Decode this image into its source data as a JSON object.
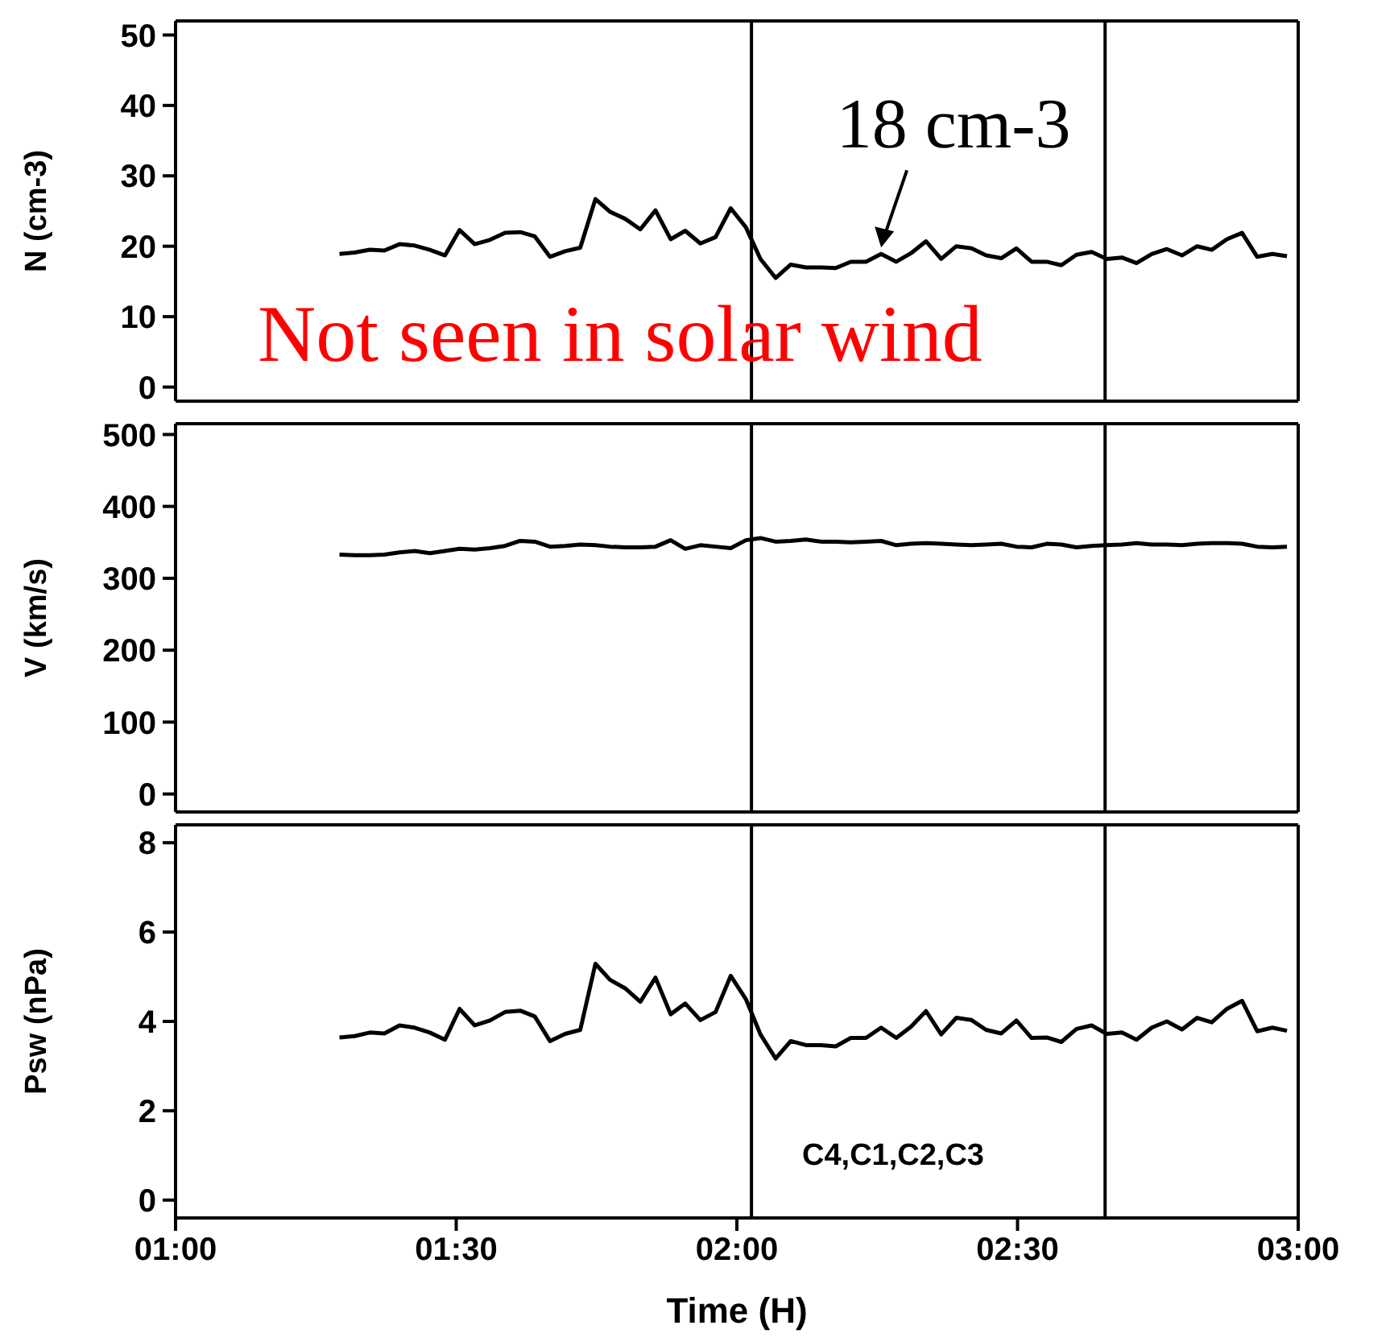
{
  "chart_data": [
    {
      "type": "line",
      "ylabel": "N (cm-3)",
      "xlim": [
        1,
        3
      ],
      "xticks": [
        {
          "value": 1,
          "label": null
        },
        {
          "value": 1.5,
          "label": null
        },
        {
          "value": 2,
          "label": null
        },
        {
          "value": 2.5,
          "label": null
        },
        {
          "value": 3,
          "label": null
        }
      ],
      "ylim": [
        -2,
        52
      ],
      "yticks": [
        0,
        10,
        20,
        30,
        40,
        50
      ],
      "tick_labels": "y",
      "x": [
        1.292,
        1.319,
        1.346,
        1.372,
        1.399,
        1.426,
        1.453,
        1.48,
        1.506,
        1.533,
        1.56,
        1.587,
        1.614,
        1.64,
        1.667,
        1.694,
        1.721,
        1.748,
        1.774,
        1.801,
        1.828,
        1.855,
        1.882,
        1.908,
        1.935,
        1.962,
        1.989,
        2.016,
        2.042,
        2.069,
        2.096,
        2.123,
        2.15,
        2.176,
        2.203,
        2.23,
        2.257,
        2.284,
        2.31,
        2.337,
        2.364,
        2.391,
        2.418,
        2.444,
        2.471,
        2.498,
        2.525,
        2.552,
        2.578,
        2.605,
        2.632,
        2.659,
        2.686,
        2.712,
        2.739,
        2.766,
        2.793,
        2.82,
        2.846,
        2.873,
        2.9,
        2.927,
        2.954,
        2.98
      ],
      "series": [
        {
          "color": "#000000",
          "values": [
            18.9,
            19.1,
            19.5,
            19.4,
            20.3,
            20.1,
            19.5,
            18.7,
            22.3,
            20.3,
            20.9,
            21.9,
            22.0,
            21.4,
            18.5,
            19.3,
            19.8,
            26.7,
            24.9,
            23.9,
            22.4,
            25.1,
            21.0,
            22.2,
            20.4,
            21.3,
            25.4,
            22.7,
            18.2,
            15.5,
            17.4,
            17.0,
            17.0,
            16.9,
            17.8,
            17.8,
            18.9,
            17.8,
            19.0,
            20.7,
            18.2,
            20.0,
            19.7,
            18.7,
            18.3,
            19.7,
            17.8,
            17.8,
            17.3,
            18.8,
            19.2,
            18.2,
            18.4,
            17.6,
            18.9,
            19.6,
            18.7,
            20.0,
            19.5,
            21.0,
            21.9,
            18.5,
            18.9,
            18.6
          ]
        }
      ],
      "ref_lines": [
        {
          "axis": "x",
          "value": 2.026,
          "color": "#000000"
        },
        {
          "axis": "x",
          "value": 2.656,
          "color": "#000000"
        }
      ],
      "annotations": [
        {
          "text": "18 cm-3",
          "x": 2.257,
          "y": 18.9
        },
        "Not seen in solar wind"
      ]
    },
    {
      "type": "line",
      "ylabel": "V (km/s)",
      "xlim": [
        1,
        3
      ],
      "xticks": [
        {
          "value": 1,
          "label": null
        },
        {
          "value": 1.5,
          "label": null
        },
        {
          "value": 2,
          "label": null
        },
        {
          "value": 2.5,
          "label": null
        },
        {
          "value": 3,
          "label": null
        }
      ],
      "ylim": [
        -25,
        515
      ],
      "yticks": [
        0,
        100,
        200,
        300,
        400,
        500
      ],
      "tick_labels": "y",
      "x": [
        1.292,
        1.319,
        1.346,
        1.372,
        1.399,
        1.426,
        1.453,
        1.48,
        1.506,
        1.533,
        1.56,
        1.587,
        1.614,
        1.64,
        1.667,
        1.694,
        1.721,
        1.748,
        1.774,
        1.801,
        1.828,
        1.855,
        1.882,
        1.908,
        1.935,
        1.962,
        1.989,
        2.016,
        2.042,
        2.069,
        2.096,
        2.123,
        2.15,
        2.176,
        2.203,
        2.23,
        2.257,
        2.284,
        2.31,
        2.337,
        2.364,
        2.391,
        2.418,
        2.444,
        2.471,
        2.498,
        2.525,
        2.552,
        2.578,
        2.605,
        2.632,
        2.659,
        2.686,
        2.712,
        2.739,
        2.766,
        2.793,
        2.82,
        2.846,
        2.873,
        2.9,
        2.927,
        2.954,
        2.98
      ],
      "series": [
        {
          "color": "#000000",
          "values": [
            333,
            332,
            332,
            333,
            336,
            338,
            335,
            338,
            341,
            340,
            342,
            345,
            352,
            351,
            344,
            345,
            347,
            346,
            344,
            343,
            343,
            344,
            353,
            341,
            346,
            344,
            342,
            353,
            356,
            351,
            352,
            354,
            351,
            351,
            350,
            351,
            352,
            346,
            348,
            349,
            348,
            347,
            346,
            347,
            348,
            344,
            343,
            348,
            347,
            343,
            345,
            346,
            347,
            349,
            347,
            347,
            346,
            348,
            349,
            349,
            348,
            344,
            343,
            344
          ]
        }
      ],
      "ref_lines": [
        {
          "axis": "x",
          "value": 2.026,
          "color": "#000000"
        },
        {
          "axis": "x",
          "value": 2.656,
          "color": "#000000"
        }
      ]
    },
    {
      "type": "line",
      "xlabel": "Time (H)",
      "ylabel": "Psw (nPa)",
      "xlim": [
        1,
        3
      ],
      "xticks": [
        {
          "value": 1,
          "label": "01:00"
        },
        {
          "value": 1.5,
          "label": "01:30"
        },
        {
          "value": 2,
          "label": "02:00"
        },
        {
          "value": 2.5,
          "label": "02:30"
        },
        {
          "value": 3,
          "label": "03:00"
        }
      ],
      "ylim": [
        -0.4,
        8.4
      ],
      "yticks": [
        0,
        2,
        4,
        6,
        8
      ],
      "x": [
        1.292,
        1.319,
        1.346,
        1.372,
        1.399,
        1.426,
        1.453,
        1.48,
        1.506,
        1.533,
        1.56,
        1.587,
        1.614,
        1.64,
        1.667,
        1.694,
        1.721,
        1.748,
        1.774,
        1.801,
        1.828,
        1.855,
        1.882,
        1.908,
        1.935,
        1.962,
        1.989,
        2.016,
        2.042,
        2.069,
        2.096,
        2.123,
        2.15,
        2.176,
        2.203,
        2.23,
        2.257,
        2.284,
        2.31,
        2.337,
        2.364,
        2.391,
        2.418,
        2.444,
        2.471,
        2.498,
        2.525,
        2.552,
        2.578,
        2.605,
        2.632,
        2.659,
        2.686,
        2.712,
        2.739,
        2.766,
        2.793,
        2.82,
        2.846,
        2.873,
        2.9,
        2.927,
        2.954,
        2.98
      ],
      "series": [
        {
          "color": "#000000",
          "values": [
            3.64,
            3.67,
            3.75,
            3.73,
            3.91,
            3.86,
            3.75,
            3.59,
            4.28,
            3.91,
            4.02,
            4.21,
            4.24,
            4.11,
            3.56,
            3.72,
            3.81,
            5.29,
            4.93,
            4.74,
            4.44,
            4.98,
            4.16,
            4.4,
            4.03,
            4.21,
            5.02,
            4.5,
            3.71,
            3.17,
            3.56,
            3.47,
            3.47,
            3.44,
            3.63,
            3.63,
            3.86,
            3.63,
            3.88,
            4.23,
            3.71,
            4.08,
            4.03,
            3.81,
            3.73,
            4.02,
            3.63,
            3.64,
            3.54,
            3.83,
            3.91,
            3.72,
            3.75,
            3.59,
            3.86,
            4.0,
            3.82,
            4.08,
            3.98,
            4.28,
            4.46,
            3.78,
            3.86,
            3.79
          ]
        }
      ],
      "ref_lines": [
        {
          "axis": "x",
          "value": 2.026,
          "color": "#000000"
        },
        {
          "axis": "x",
          "value": 2.656,
          "color": "#000000"
        }
      ],
      "annotations": [
        "C4,C1,C2,C3"
      ]
    }
  ]
}
